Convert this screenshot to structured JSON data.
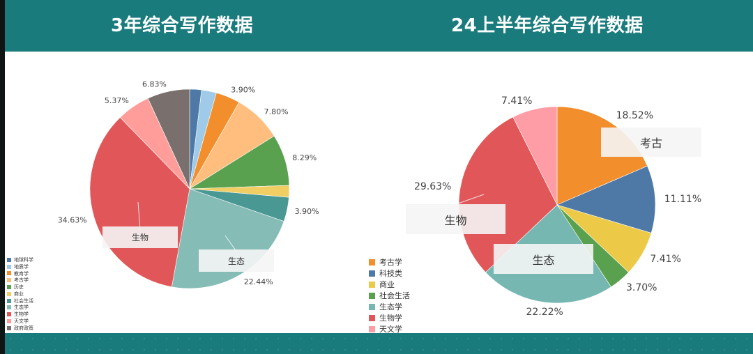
{
  "header": {
    "left_title": "3年综合写作数据",
    "right_title": "24上半年综合写作数据",
    "bg_color": "#1a7b7c"
  },
  "chart_data": [
    {
      "type": "pie",
      "title": "3年综合写作数据",
      "legend_position": "bottom-left",
      "slices": [
        {
          "label": "地球科学",
          "value": 1.9,
          "color": "#4e79a7"
        },
        {
          "label": "地质学",
          "value": 2.4,
          "color": "#a0cbe8"
        },
        {
          "label": "教育学",
          "value": 3.9,
          "color": "#f28e2b",
          "data_label": "3.90%"
        },
        {
          "label": "考古学",
          "value": 7.8,
          "color": "#ffbe7d",
          "data_label": "7.80%"
        },
        {
          "label": "历史",
          "value": 8.29,
          "color": "#59a14f",
          "data_label": "8.29%"
        },
        {
          "label": "商业",
          "value": 1.9,
          "color": "#f1ce63"
        },
        {
          "label": "社会生活",
          "value": 3.9,
          "color": "#499894",
          "data_label": "3.90%"
        },
        {
          "label": "生态学",
          "value": 22.44,
          "color": "#86bcb6",
          "data_label": "22.44%"
        },
        {
          "label": "生物学",
          "value": 34.63,
          "color": "#e15759",
          "data_label": "34.63%"
        },
        {
          "label": "天文学",
          "value": 5.37,
          "color": "#ff9d9a",
          "data_label": "5.37%"
        },
        {
          "label": "政府政策",
          "value": 6.83,
          "color": "#79706e",
          "data_label": "6.83%"
        }
      ],
      "annotations": [
        "生物",
        "生态"
      ]
    },
    {
      "type": "pie",
      "title": "24上半年综合写作数据",
      "legend_position": "bottom-left",
      "slices": [
        {
          "label": "考古学",
          "value": 18.52,
          "color": "#f28e2b",
          "data_label": "18.52%"
        },
        {
          "label": "科技类",
          "value": 11.11,
          "color": "#4e79a7",
          "data_label": "11.11%"
        },
        {
          "label": "商业",
          "value": 7.41,
          "color": "#edc948",
          "data_label": "7.41%"
        },
        {
          "label": "社会生活",
          "value": 3.7,
          "color": "#59a14f",
          "data_label": "3.70%"
        },
        {
          "label": "生态学",
          "value": 22.22,
          "color": "#76b7b2",
          "data_label": "22.22%"
        },
        {
          "label": "生物学",
          "value": 29.63,
          "color": "#e15759",
          "data_label": "29.63%"
        },
        {
          "label": "天文学",
          "value": 7.41,
          "color": "#ff9da7",
          "data_label": "7.41%"
        }
      ],
      "annotations": [
        "考古",
        "生物",
        "生态"
      ]
    }
  ]
}
